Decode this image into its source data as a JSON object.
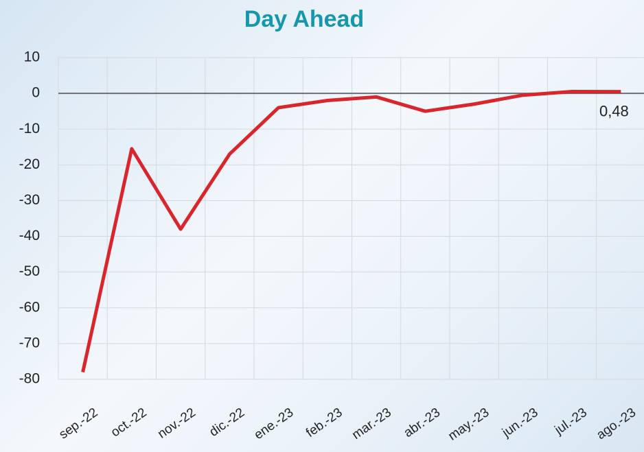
{
  "chart_data": {
    "type": "line",
    "title": "Day Ahead",
    "categories": [
      "sep.-22",
      "oct.-22",
      "nov.-22",
      "dic.-22",
      "ene.-23",
      "feb.-23",
      "mar.-23",
      "abr.-23",
      "may.-23",
      "jun.-23",
      "jul.-23",
      "ago.-23"
    ],
    "series": [
      {
        "name": "Day Ahead",
        "color": "#d9262c",
        "values": [
          -78,
          -15.5,
          -38,
          -17,
          -4,
          -2,
          -1,
          -5,
          -3,
          -0.5,
          0.5,
          0.48
        ],
        "value_labels": [
          null,
          null,
          null,
          null,
          null,
          null,
          null,
          null,
          null,
          null,
          null,
          "0,48"
        ]
      }
    ],
    "ylim": [
      -80,
      10
    ],
    "yticks": [
      10,
      0,
      -10,
      -20,
      -30,
      -40,
      -50,
      -60,
      -70,
      -80
    ],
    "grid": true
  }
}
